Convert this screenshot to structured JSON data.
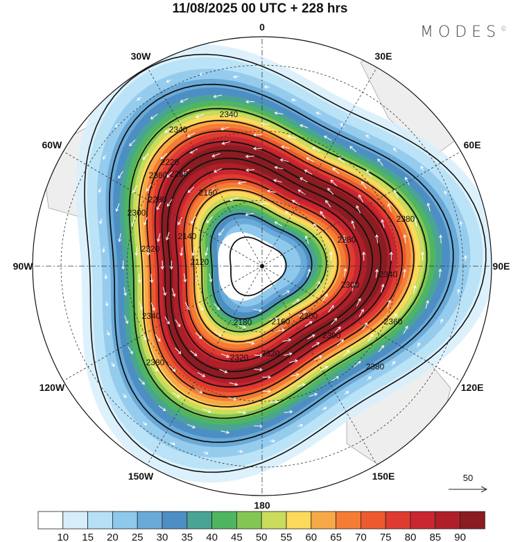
{
  "title": "11/08/2025  00 UTC  + 228 hrs",
  "logo": "MODES",
  "logo_mark": "©",
  "lon_labels": [
    "0",
    "30E",
    "60E",
    "90E",
    "120E",
    "150E",
    "180",
    "150W",
    "120W",
    "90W",
    "60W",
    "30W"
  ],
  "contour_labels": [
    "2340",
    "2340",
    "2360",
    "2260",
    "2280",
    "2300",
    "2220",
    "2160",
    "2140",
    "2120",
    "2180",
    "2160",
    "2200",
    "2280",
    "2300",
    "2320",
    "2320",
    "2300",
    "2340",
    "2360",
    "2380",
    "2380",
    "2380",
    "2320",
    "2340"
  ],
  "vector_reference": {
    "label": "50"
  },
  "colorbar": {
    "labels": [
      "10",
      "15",
      "20",
      "25",
      "30",
      "35",
      "40",
      "45",
      "50",
      "55",
      "60",
      "65",
      "70",
      "75",
      "80",
      "85",
      "90"
    ],
    "colors": [
      "#ffffff",
      "#d6eefa",
      "#b5e0f6",
      "#8ec8ec",
      "#6aaad8",
      "#4d8fc4",
      "#4aa494",
      "#4fb560",
      "#84c653",
      "#c9dc5c",
      "#fbd95c",
      "#f8a947",
      "#f57c34",
      "#ec5a2e",
      "#df3b30",
      "#c92630",
      "#ae1f2a",
      "#8b1c22"
    ]
  },
  "land_color": "#eeeeee"
}
